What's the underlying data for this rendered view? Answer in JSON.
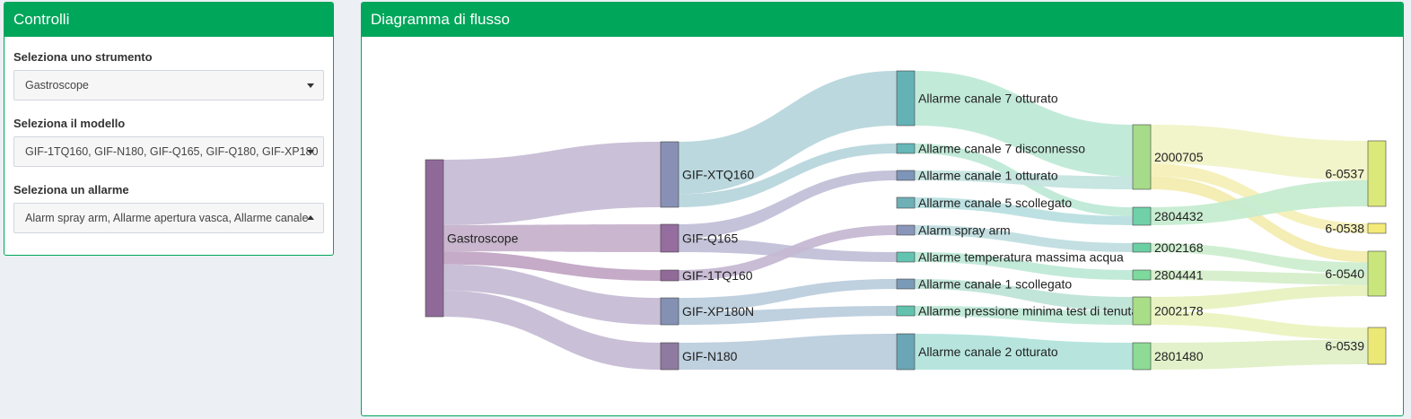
{
  "controls": {
    "title": "Controlli",
    "instrument": {
      "label": "Seleziona uno strumento",
      "value": "Gastroscope"
    },
    "model": {
      "label": "Seleziona il modello",
      "value": "GIF-1TQ160, GIF-N180, GIF-Q165, GIF-Q180, GIF-XP180"
    },
    "alarm": {
      "label": "Seleziona un allarme",
      "value": "Alarm spray arm, Allarme apertura vasca, Allarme canale"
    }
  },
  "flow": {
    "title": "Diagramma di flusso"
  },
  "sankey": {
    "nodes": [
      {
        "id": "gastro",
        "label": "Gastroscope",
        "color": "#8f6a99"
      },
      {
        "id": "xtq160",
        "label": "GIF-XTQ160",
        "color": "#8891b5"
      },
      {
        "id": "q165",
        "label": "GIF-Q165",
        "color": "#956d9e"
      },
      {
        "id": "1tq160",
        "label": "GIF-1TQ160",
        "color": "#926a97"
      },
      {
        "id": "xp180n",
        "label": "GIF-XP180N",
        "color": "#8591b3"
      },
      {
        "id": "n180",
        "label": "GIF-N180",
        "color": "#8f7aa1"
      },
      {
        "id": "a7ott",
        "label": "Allarme canale 7 otturato",
        "color": "#64b2b6"
      },
      {
        "id": "a7dis",
        "label": "Allarme canale 7 disconnesso",
        "color": "#67b6b8"
      },
      {
        "id": "a1ott",
        "label": "Allarme canale 1 otturato",
        "color": "#7d95b8"
      },
      {
        "id": "a5sco",
        "label": "Allarme canale 5 scollegato",
        "color": "#6eb0b6"
      },
      {
        "id": "spray",
        "label": "Alarm spray arm",
        "color": "#8a95ba"
      },
      {
        "id": "temp",
        "label": "Allarme temperatura massima acqua",
        "color": "#63c3b1"
      },
      {
        "id": "a1sco",
        "label": "Allarme canale 1 scollegato",
        "color": "#7a9bb8"
      },
      {
        "id": "press",
        "label": "Allarme pressione minima test di tenuta",
        "color": "#62c2ad"
      },
      {
        "id": "a2ott",
        "label": "Allarme canale 2 otturato",
        "color": "#6aa6b5"
      },
      {
        "id": "s2000705",
        "label": "2000705",
        "color": "#a6db8a"
      },
      {
        "id": "s2804432",
        "label": "2804432",
        "color": "#70d0a8"
      },
      {
        "id": "s2002168",
        "label": "2002168",
        "color": "#6ad0a4"
      },
      {
        "id": "s2804441",
        "label": "2804441",
        "color": "#7dd99c"
      },
      {
        "id": "s2002178",
        "label": "2002178",
        "color": "#a8de86"
      },
      {
        "id": "s2801480",
        "label": "2801480",
        "color": "#8ddb94"
      },
      {
        "id": "c0537",
        "label": "6-0537",
        "color": "#dbe87a"
      },
      {
        "id": "c0538",
        "label": "6-0538",
        "color": "#f4ea78"
      },
      {
        "id": "c0540",
        "label": "6-0540",
        "color": "#c8e67c"
      },
      {
        "id": "c0539",
        "label": "6-0539",
        "color": "#ece875"
      }
    ],
    "links": [
      {
        "source": "gastro",
        "target": "xtq160",
        "value": 5,
        "color": "#c7bed6"
      },
      {
        "source": "gastro",
        "target": "q165",
        "value": 2,
        "color": "#c7b3cc"
      },
      {
        "source": "gastro",
        "target": "1tq160",
        "value": 1,
        "color": "#c2a6c4"
      },
      {
        "source": "gastro",
        "target": "xp180n",
        "value": 2,
        "color": "#c6bdd5"
      },
      {
        "source": "gastro",
        "target": "n180",
        "value": 2,
        "color": "#c6bcd5"
      },
      {
        "source": "xtq160",
        "target": "a7ott",
        "value": 4,
        "color": "#b7d6dc"
      },
      {
        "source": "xtq160",
        "target": "a7dis",
        "value": 1,
        "color": "#b7d6dc"
      },
      {
        "source": "q165",
        "target": "a1ott",
        "value": 1,
        "color": "#c1c0d8"
      },
      {
        "source": "q165",
        "target": "temp",
        "value": 1,
        "color": "#c1c0d8"
      },
      {
        "source": "1tq160",
        "target": "spray",
        "value": 1,
        "color": "#c6b8d3"
      },
      {
        "source": "xp180n",
        "target": "a1sco",
        "value": 1,
        "color": "#bccedd"
      },
      {
        "source": "xp180n",
        "target": "press",
        "value": 1,
        "color": "#bccedd"
      },
      {
        "source": "n180",
        "target": "a2ott",
        "value": 2,
        "color": "#bccedd"
      },
      {
        "source": "a7ott",
        "target": "s2000705",
        "value": 4,
        "color": "#bfe9d7"
      },
      {
        "source": "a7dis",
        "target": "s2804432",
        "value": 1,
        "color": "#bfe9d7"
      },
      {
        "source": "a1ott",
        "target": "s2000705",
        "value": 1,
        "color": "#c4e4df"
      },
      {
        "source": "a5sco",
        "target": "s2804432",
        "value": 1,
        "color": "#b9dfe0"
      },
      {
        "source": "spray",
        "target": "s2002168",
        "value": 1,
        "color": "#c0dde0"
      },
      {
        "source": "temp",
        "target": "s2804441",
        "value": 1,
        "color": "#bfe9d7"
      },
      {
        "source": "a1sco",
        "target": "s2002178",
        "value": 1,
        "color": "#bfe4d7"
      },
      {
        "source": "press",
        "target": "s2002178",
        "value": 1,
        "color": "#bfe9d7"
      },
      {
        "source": "a2ott",
        "target": "s2801480",
        "value": 2,
        "color": "#b3e4dc"
      },
      {
        "source": "s2000705",
        "target": "c0537",
        "value": 3,
        "color": "#f1f3c7"
      },
      {
        "source": "s2000705",
        "target": "c0538",
        "value": 1,
        "color": "#f6f0b8"
      },
      {
        "source": "s2000705",
        "target": "c0540",
        "value": 1,
        "color": "#f3ecb0"
      },
      {
        "source": "s2804432",
        "target": "c0537",
        "value": 2,
        "color": "#c6ecd0"
      },
      {
        "source": "s2002168",
        "target": "c0540",
        "value": 1,
        "color": "#cdeed0"
      },
      {
        "source": "s2804441",
        "target": "c0540",
        "value": 1,
        "color": "#d6eecb"
      },
      {
        "source": "s2002178",
        "target": "c0540",
        "value": 1,
        "color": "#e7f1c0"
      },
      {
        "source": "s2002178",
        "target": "c0539",
        "value": 1,
        "color": "#ecf3c0"
      },
      {
        "source": "s2801480",
        "target": "c0539",
        "value": 2,
        "color": "#e0f0c6"
      }
    ]
  }
}
